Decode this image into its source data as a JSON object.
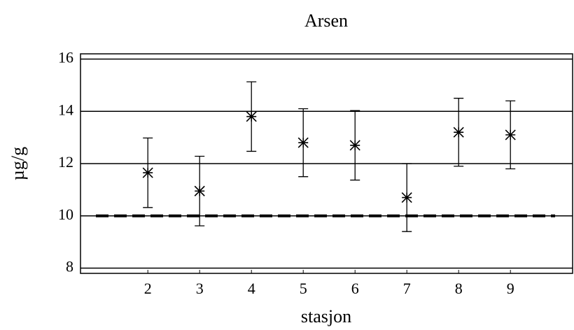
{
  "chart_data": {
    "type": "errorbar",
    "title": "Arsen",
    "x_label": "stasjon",
    "y_label": "µg/g",
    "x": [
      2,
      3,
      4,
      5,
      6,
      7,
      8,
      9
    ],
    "values": [
      11.65,
      10.95,
      13.8,
      12.8,
      12.7,
      10.7,
      13.2,
      13.1
    ],
    "errors": [
      1.33,
      1.33,
      1.33,
      1.3,
      1.33,
      1.3,
      1.3,
      1.3
    ],
    "color": "#000000",
    "reference_line": 10,
    "xlim": [
      0.7,
      10.2
    ],
    "xticks": [
      2,
      3,
      4,
      5,
      6,
      7,
      8,
      9
    ],
    "ylim": [
      7.8,
      16.2
    ],
    "yticks": [
      8,
      10,
      12,
      14,
      16
    ],
    "grid": true
  }
}
